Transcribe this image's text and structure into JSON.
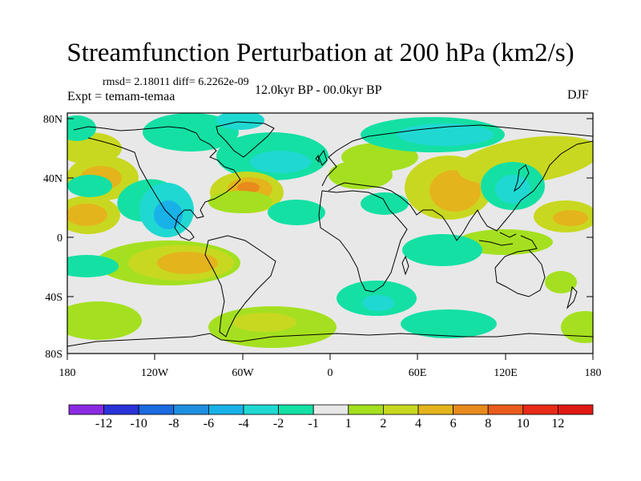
{
  "title": "Streamfunction Perturbation at 200 hPa (km2/s)",
  "stats_text": "rmsd= 2.18011 diff= 6.2262e-09",
  "experiment_text": "Expt = temam-temaa",
  "period_text": "12.0kyr BP - 00.0kyr BP",
  "season_text": "DJF",
  "lat_labels": [
    "80N",
    "40N",
    "0",
    "40S",
    "80S"
  ],
  "lon_labels": [
    "180",
    "120W",
    "60W",
    "0",
    "60E",
    "120E",
    "180"
  ],
  "colorbar": {
    "labels": [
      "-12",
      "-10",
      "-8",
      "-6",
      "-4",
      "-2",
      "-1",
      "1",
      "2",
      "4",
      "6",
      "8",
      "10",
      "12"
    ],
    "colors": [
      "#8a2be2",
      "#2a32d8",
      "#1a6ae0",
      "#1f8fe0",
      "#18b2e8",
      "#20d8d2",
      "#14e0a4",
      "#e8e8e8",
      "#a4e020",
      "#c8d820",
      "#e4b41c",
      "#e88a1c",
      "#ea5c1c",
      "#e82a18",
      "#e01a14"
    ]
  },
  "palette": {
    "neutral": "#e8e8e8",
    "pos1": "#a4e020",
    "pos2": "#c8d820",
    "pos3": "#e4b41c",
    "pos4": "#e88a1c",
    "neg1": "#14e0a4",
    "neg2": "#20d8d2",
    "neg3": "#18b2e8",
    "neg4": "#1f8fe0"
  }
}
